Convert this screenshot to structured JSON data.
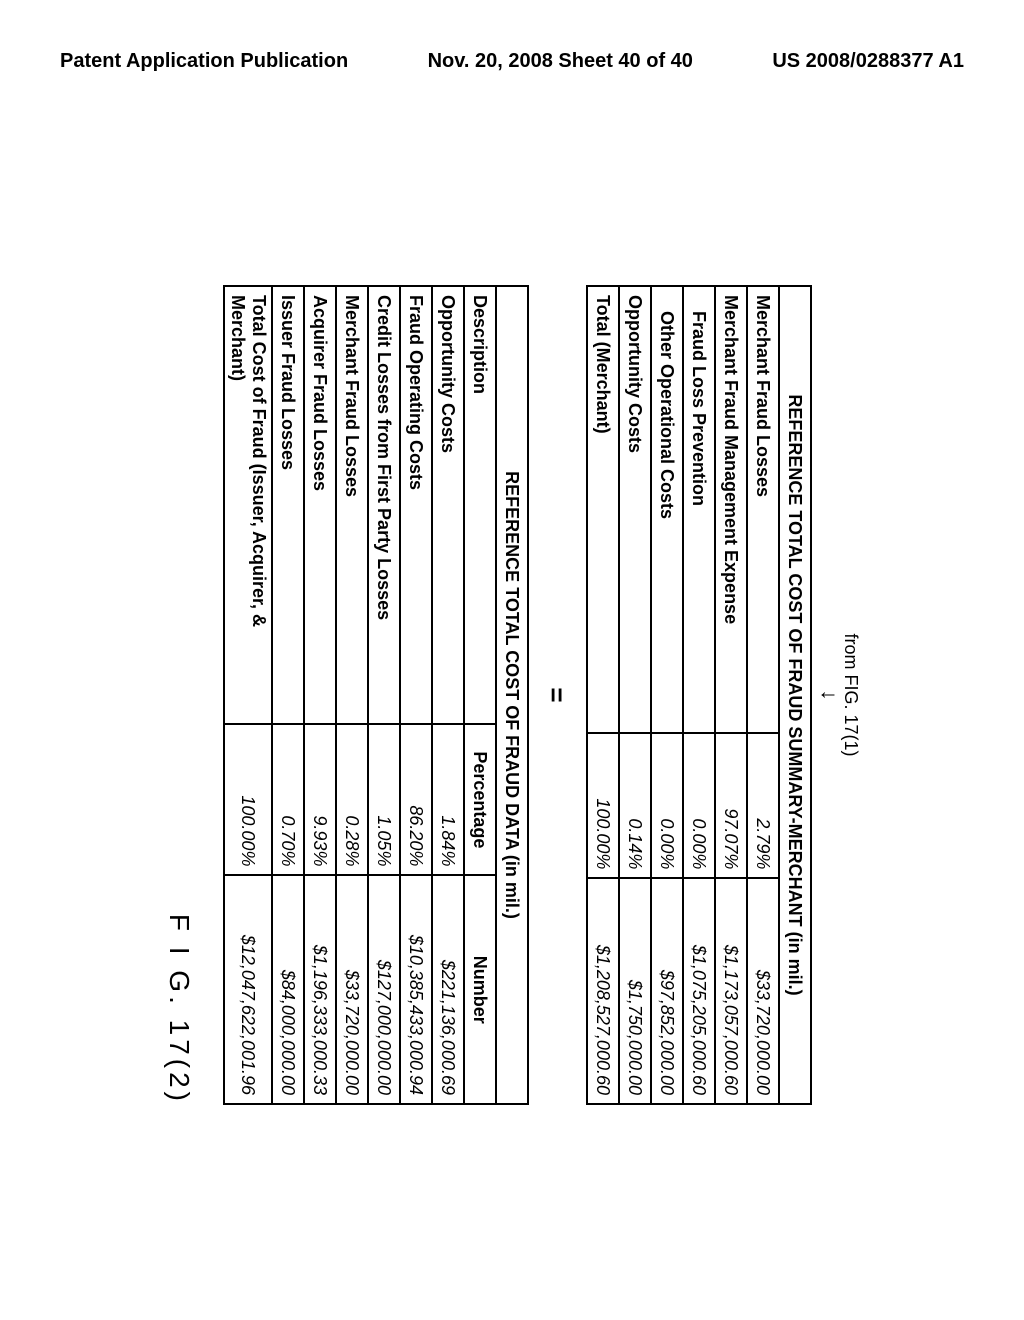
{
  "page_header": {
    "left": "Patent Application Publication",
    "center": "Nov. 20, 2008  Sheet 40 of 40",
    "right": "US 2008/0288377 A1"
  },
  "from_line": "from FIG. 17(1)",
  "arrow_glyph": "↓",
  "equals_glyph": "=",
  "table1": {
    "title": "REFERENCE TOTAL COST OF FRAUD SUMMARY-MERCHANT (in mil.)",
    "rows": [
      {
        "desc": "Merchant Fraud Losses",
        "indent": 0,
        "pct": "2.79%",
        "num": "$33,720,000.00"
      },
      {
        "desc": "Merchant Fraud Management Expense",
        "indent": 0,
        "pct": "97.07%",
        "num": "$1,173,057,000.60"
      },
      {
        "desc": "Fraud Loss Prevention",
        "indent": 1,
        "pct": "0.00%",
        "num": "$1,075,205,000.60"
      },
      {
        "desc": "Other Operational Costs",
        "indent": 1,
        "pct": "0.00%",
        "num": "$97,852,000.00"
      },
      {
        "desc": "Opportunity Costs",
        "indent": 0,
        "pct": "0.14%",
        "num": "$1,750,000.00"
      },
      {
        "desc": "Total (Merchant)",
        "indent": 0,
        "pct": "100.00%",
        "num": "$1,208,527,000.60"
      }
    ]
  },
  "table2": {
    "title": "REFERENCE TOTAL COST OF FRAUD DATA (in mil.)",
    "headers": {
      "desc": "Description",
      "pct": "Percentage",
      "num": "Number"
    },
    "rows": [
      {
        "desc": "Opportunity Costs",
        "pct": "1.84%",
        "num": "$221,136,000.69"
      },
      {
        "desc": "Fraud Operating Costs",
        "pct": "86.20%",
        "num": "$10,385,433,000.94"
      },
      {
        "desc": "Credit Losses from First Party Losses",
        "pct": "1.05%",
        "num": "$127,000,000.00"
      },
      {
        "desc": "Merchant Fraud Losses",
        "pct": "0.28%",
        "num": "$33,720,000.00"
      },
      {
        "desc": "Acquirer Fraud Losses",
        "pct": "9.93%",
        "num": "$1,196,333,000.33"
      },
      {
        "desc": "Issuer Fraud Losses",
        "pct": "0.70%",
        "num": "$84,000,000.00"
      },
      {
        "desc": "Total Cost of Fraud (Issuer, Acquirer, & Merchant)",
        "pct": "100.00%",
        "num": "$12,047,622,001.96"
      }
    ]
  },
  "figure_label": "F I G. 17(2)",
  "colors": {
    "background": "#ffffff",
    "text": "#000000",
    "border": "#000000"
  },
  "typography": {
    "base_font": "Arial",
    "header_fontsize_pt": 15,
    "table_fontsize_pt": 13,
    "figlabel_fontsize_pt": 22
  }
}
